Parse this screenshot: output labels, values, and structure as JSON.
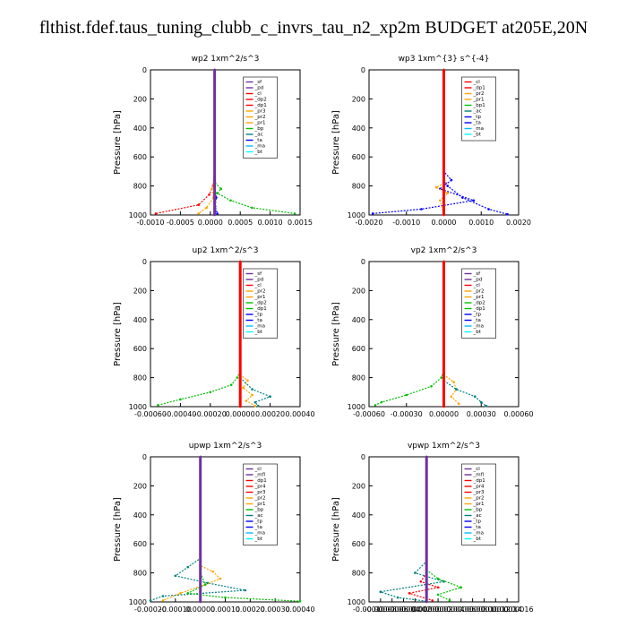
{
  "title": "flthist.fdef.taus_tuning_clubb_c_invrs_tau_n2_xp2m  BUDGET at205E,20N",
  "chart_data": [
    {
      "type": "line",
      "title": "wp2  1xm^2/s^3",
      "ylabel": "Pressure [hPa]",
      "ylim": [
        1000,
        0
      ],
      "yticks": [
        "0",
        "200",
        "400",
        "600",
        "800",
        "1000"
      ],
      "xlim": [
        -0.0012,
        0.0016
      ],
      "xticks": [
        "-0.0010",
        "-0.0005",
        "0.0000",
        "0.0005",
        "0.0010",
        "0.0015"
      ],
      "legend": [
        "_sf",
        "_pd",
        "_cl",
        "_dp2",
        "_dp1",
        "_pr3",
        "_pr2",
        "_pr1",
        "_bp",
        "_ac",
        "_ta",
        "_ma",
        "_bt"
      ],
      "colors": [
        "#7030a0",
        "#7030a0",
        "#ff0000",
        "#ff0000",
        "#ff0000",
        "#ffa500",
        "#ffa500",
        "#ffa500",
        "#00c000",
        "#008080",
        "#0000ff",
        "#00bfff",
        "#00ffff"
      ],
      "series": [
        {
          "name": "_bp",
          "values": [
            [
              0,
              0
            ],
            [
              0,
              600
            ],
            [
              1e-05,
              780
            ],
            [
              0.00012,
              820
            ],
            [
              5e-05,
              850
            ],
            [
              0.0003,
              900
            ],
            [
              0.0007,
              950
            ],
            [
              0.0015,
              990
            ]
          ]
        },
        {
          "name": "_dp1",
          "values": [
            [
              0,
              0
            ],
            [
              0,
              700
            ],
            [
              -3e-05,
              800
            ],
            [
              -0.0001,
              860
            ],
            [
              -0.0003,
              930
            ],
            [
              -0.0011,
              990
            ]
          ]
        },
        {
          "name": "_pr1",
          "values": [
            [
              0,
              0
            ],
            [
              0,
              750
            ],
            [
              -5e-05,
              820
            ],
            [
              -2e-05,
              880
            ],
            [
              -0.00015,
              950
            ],
            [
              -0.0003,
              990
            ]
          ]
        },
        {
          "name": "_ta",
          "values": [
            [
              0,
              0
            ],
            [
              0,
              800
            ],
            [
              3e-05,
              880
            ],
            [
              1e-05,
              940
            ],
            [
              5e-05,
              990
            ]
          ]
        },
        {
          "name": "_cl",
          "values": [
            [
              0,
              0
            ],
            [
              0,
              1000
            ]
          ]
        }
      ]
    },
    {
      "type": "line",
      "title": "wp3  1xm^{3} s^{-4}",
      "ylabel": "Pressure [hPa]",
      "ylim": [
        1000,
        0
      ],
      "yticks": [
        "0",
        "200",
        "400",
        "600",
        "800",
        "1000"
      ],
      "xlim": [
        -0.002,
        0.002
      ],
      "xticks": [
        "-0.0020",
        "-0.0010",
        "0.0000",
        "0.0010",
        "0.0020"
      ],
      "legend": [
        "_cl",
        "_dp1",
        "_pr2",
        "_pr1",
        "_bp1",
        "_ac",
        "_tp",
        "_ta",
        "_ma",
        "_bt"
      ],
      "colors": [
        "#ff0000",
        "#ff0000",
        "#ffa500",
        "#ffa500",
        "#00c000",
        "#008080",
        "#0000ff",
        "#0000ff",
        "#00bfff",
        "#00ffff"
      ],
      "series": [
        {
          "name": "_ta",
          "values": [
            [
              0,
              0
            ],
            [
              0,
              700
            ],
            [
              0.0002,
              760
            ],
            [
              -0.0001,
              820
            ],
            [
              0.0008,
              900
            ],
            [
              -0.0006,
              960
            ],
            [
              -0.0019,
              990
            ]
          ]
        },
        {
          "name": "_tp",
          "values": [
            [
              0,
              0
            ],
            [
              0,
              750
            ],
            [
              0.0001,
              800
            ],
            [
              0.0005,
              880
            ],
            [
              0.0012,
              960
            ],
            [
              0.0017,
              995
            ]
          ]
        },
        {
          "name": "_pr1",
          "values": [
            [
              0,
              0
            ],
            [
              0,
              780
            ],
            [
              -0.0002,
              810
            ],
            [
              0.0001,
              850
            ],
            [
              -0.0001,
              900
            ],
            [
              0,
              1000
            ]
          ]
        },
        {
          "name": "_cl",
          "values": [
            [
              0,
              0
            ],
            [
              0,
              1000
            ]
          ]
        }
      ]
    },
    {
      "type": "line",
      "title": "up2  1xm^2/s^3",
      "ylabel": "Pressure [hPa]",
      "ylim": [
        1000,
        0
      ],
      "yticks": [
        "0",
        "200",
        "400",
        "600",
        "800",
        "1000"
      ],
      "xlim": [
        -0.0006,
        0.0004
      ],
      "xticks": [
        "-0.00060",
        "-0.00040",
        "-0.00020",
        "0.00000",
        "0.00020",
        "0.00040"
      ],
      "legend": [
        "_sf",
        "_pd",
        "_cl",
        "_pr2",
        "_pr1",
        "_dp2",
        "_dp1",
        "_tp",
        "_ta",
        "_ma",
        "_bt"
      ],
      "colors": [
        "#7030a0",
        "#7030a0",
        "#ff0000",
        "#ffa500",
        "#ffa500",
        "#00c000",
        "#00c000",
        "#0000ff",
        "#0000ff",
        "#00bfff",
        "#00ffff"
      ],
      "series": [
        {
          "name": "_dp1",
          "values": [
            [
              0,
              0
            ],
            [
              0,
              750
            ],
            [
              -2e-05,
              800
            ],
            [
              -6e-05,
              850
            ],
            [
              -0.0002,
              900
            ],
            [
              -0.0004,
              950
            ],
            [
              -0.00055,
              990
            ]
          ]
        },
        {
          "name": "_pr1",
          "values": [
            [
              0,
              0
            ],
            [
              0,
              780
            ],
            [
              5e-05,
              820
            ],
            [
              2e-05,
              870
            ],
            [
              8e-05,
              920
            ],
            [
              4e-05,
              960
            ],
            [
              0.0001,
              995
            ]
          ]
        },
        {
          "name": "_tp",
          "values": [
            [
              0,
              0
            ],
            [
              0,
              800
            ],
            [
              8e-05,
              880
            ],
            [
              0.0002,
              930
            ],
            [
              0.0001,
              970
            ],
            [
              0.00012,
              995
            ]
          ]
        },
        {
          "name": "_cl",
          "values": [
            [
              0,
              0
            ],
            [
              0,
              1000
            ]
          ]
        }
      ]
    },
    {
      "type": "line",
      "title": "vp2  1xm^2/s^3",
      "ylabel": "Pressure [hPa]",
      "ylim": [
        1000,
        0
      ],
      "yticks": [
        "0",
        "200",
        "400",
        "600",
        "800",
        "1000"
      ],
      "xlim": [
        -0.0006,
        0.0006
      ],
      "xticks": [
        "-0.00060",
        "-0.00030",
        "0.00000",
        "0.00030",
        "0.00060"
      ],
      "legend": [
        "_sf",
        "_pd",
        "_cl",
        "_pr2",
        "_pr1",
        "_dp2",
        "_dp1",
        "_tp",
        "_ta",
        "_ma",
        "_bt"
      ],
      "colors": [
        "#7030a0",
        "#7030a0",
        "#ff0000",
        "#ffa500",
        "#ffa500",
        "#00c000",
        "#00c000",
        "#0000ff",
        "#0000ff",
        "#00bfff",
        "#00ffff"
      ],
      "series": [
        {
          "name": "_dp1",
          "values": [
            [
              0,
              0
            ],
            [
              0,
              750
            ],
            [
              -2e-05,
              800
            ],
            [
              -0.0001,
              860
            ],
            [
              -0.0003,
              920
            ],
            [
              -0.0005,
              970
            ],
            [
              -0.00055,
              990
            ]
          ]
        },
        {
          "name": "_pr1",
          "values": [
            [
              0,
              0
            ],
            [
              0,
              780
            ],
            [
              8e-05,
              830
            ],
            [
              0.0001,
              880
            ],
            [
              6e-05,
              930
            ],
            [
              0.00012,
              980
            ]
          ]
        },
        {
          "name": "_tp",
          "values": [
            [
              0,
              0
            ],
            [
              0,
              820
            ],
            [
              0.0001,
              880
            ],
            [
              0.00025,
              930
            ],
            [
              0.0003,
              970
            ],
            [
              0.00034,
              995
            ]
          ]
        },
        {
          "name": "_cl",
          "values": [
            [
              0,
              0
            ],
            [
              0,
              1000
            ]
          ]
        }
      ]
    },
    {
      "type": "line",
      "title": "upwp  1xm^2/s^3",
      "ylabel": "Pressure [hPa]",
      "ylim": [
        1000,
        0
      ],
      "yticks": [
        "0",
        "200",
        "400",
        "600",
        "800",
        "1000"
      ],
      "xlim": [
        -0.0002,
        0.0004
      ],
      "xticks": [
        "-0.00020",
        "-0.00010",
        "0.00000",
        "0.00010",
        "0.00020",
        "0.00030",
        "0.00040"
      ],
      "legend": [
        "_cl",
        "_mfl",
        "_dp1",
        "_pr4",
        "_pr3",
        "_pr2",
        "_pr1",
        "_bp",
        "_ac",
        "_tp",
        "_ta",
        "_ma",
        "_bt"
      ],
      "colors": [
        "#7030a0",
        "#7030a0",
        "#ff0000",
        "#ff0000",
        "#ff0000",
        "#ffa500",
        "#ffa500",
        "#00c000",
        "#008080",
        "#0000ff",
        "#0000ff",
        "#00bfff",
        "#00ffff"
      ],
      "series": [
        {
          "name": "_tp",
          "values": [
            [
              0,
              0
            ],
            [
              0,
              700
            ],
            [
              -5e-05,
              760
            ],
            [
              -0.0001,
              820
            ],
            [
              3e-05,
              870
            ],
            [
              0.00018,
              920
            ],
            [
              -0.00015,
              960
            ],
            [
              -0.0002,
              990
            ]
          ]
        },
        {
          "name": "_pr1",
          "values": [
            [
              0,
              0
            ],
            [
              0,
              750
            ],
            [
              5e-05,
              790
            ],
            [
              8e-05,
              840
            ],
            [
              2e-05,
              880
            ],
            [
              -8e-05,
              940
            ],
            [
              -0.00015,
              990
            ]
          ]
        },
        {
          "name": "_bp",
          "values": [
            [
              0,
              0
            ],
            [
              0,
              800
            ],
            [
              2e-05,
              880
            ],
            [
              -5e-05,
              940
            ],
            [
              0.0001,
              970
            ],
            [
              0.0004,
              995
            ]
          ]
        },
        {
          "name": "_cl",
          "values": [
            [
              0,
              0
            ],
            [
              0,
              1000
            ]
          ]
        }
      ]
    },
    {
      "type": "line",
      "title": "vpwp  1xm^2/s^3",
      "ylabel": "Pressure [hPa]",
      "ylim": [
        1000,
        0
      ],
      "yticks": [
        "0",
        "200",
        "400",
        "600",
        "800",
        "1000"
      ],
      "xlim": [
        -0.0001,
        0.00016
      ],
      "xticks": [
        "-0.00010",
        "-0.00008",
        "-0.00006",
        "-0.00004",
        "-0.00002",
        "0.00000",
        "0.00002",
        "0.00004",
        "0.00006",
        "0.00008",
        "0.00010",
        "0.00012",
        "0.00014",
        "0.00016"
      ],
      "legend": [
        "_cl",
        "_mfl",
        "_dp1",
        "_pr4",
        "_pr3",
        "_pr2",
        "_pr1",
        "_bp",
        "_ac",
        "_tp",
        "_ta",
        "_ma",
        "_bt"
      ],
      "colors": [
        "#7030a0",
        "#7030a0",
        "#ff0000",
        "#ff0000",
        "#ff0000",
        "#ffa500",
        "#ffa500",
        "#00c000",
        "#008080",
        "#0000ff",
        "#0000ff",
        "#00bfff",
        "#00ffff"
      ],
      "series": [
        {
          "name": "_tp",
          "values": [
            [
              0,
              0
            ],
            [
              0,
              720
            ],
            [
              -2e-05,
              800
            ],
            [
              3e-05,
              860
            ],
            [
              -8e-05,
              930
            ],
            [
              -5e-05,
              970
            ],
            [
              0,
              995
            ]
          ]
        },
        {
          "name": "_bp",
          "values": [
            [
              0,
              0
            ],
            [
              0,
              780
            ],
            [
              2e-05,
              840
            ],
            [
              6e-05,
              900
            ],
            [
              2e-05,
              950
            ],
            [
              4e-05,
              990
            ]
          ]
        },
        {
          "name": "_pr1",
          "values": [
            [
              0,
              0
            ],
            [
              0,
              800
            ],
            [
              -1e-05,
              860
            ],
            [
              2e-05,
              900
            ],
            [
              -3e-05,
              940
            ],
            [
              1e-05,
              990
            ]
          ]
        },
        {
          "name": "_cl",
          "values": [
            [
              0,
              0
            ],
            [
              0,
              1000
            ]
          ]
        }
      ]
    }
  ]
}
